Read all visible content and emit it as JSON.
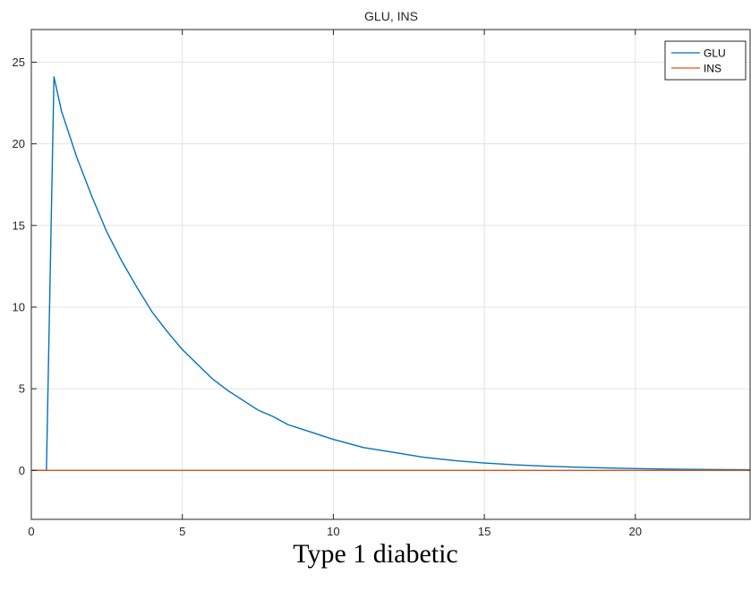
{
  "caption": "Type 1 diabetic",
  "chart_data": {
    "type": "line",
    "title": "GLU, INS",
    "xlabel": "",
    "ylabel": "",
    "xlim": [
      0,
      23.8
    ],
    "ylim": [
      -3,
      27
    ],
    "xticks": [
      0,
      5,
      10,
      15,
      20
    ],
    "yticks": [
      0,
      5,
      10,
      15,
      20,
      25
    ],
    "grid": true,
    "legend_position": "top-right",
    "series": [
      {
        "name": "GLU",
        "color": "#0072BD",
        "x": [
          0,
          0.5,
          0.75,
          1,
          1.5,
          2,
          2.5,
          3,
          3.5,
          4,
          4.5,
          5,
          5.5,
          6,
          6.5,
          7,
          7.5,
          8,
          8.5,
          9,
          10,
          11,
          12,
          13,
          14,
          15,
          16,
          17,
          18,
          19,
          20,
          21,
          22,
          23,
          23.8
        ],
        "y": [
          0,
          0,
          24.1,
          22.0,
          19.2,
          16.8,
          14.6,
          12.8,
          11.2,
          9.7,
          8.5,
          7.4,
          6.5,
          5.6,
          4.9,
          4.3,
          3.7,
          3.3,
          2.8,
          2.5,
          1.9,
          1.4,
          1.1,
          0.8,
          0.6,
          0.45,
          0.34,
          0.26,
          0.2,
          0.15,
          0.11,
          0.08,
          0.06,
          0.05,
          0.04
        ]
      },
      {
        "name": "INS",
        "color": "#D95319",
        "x": [
          0,
          23.8
        ],
        "y": [
          0,
          0
        ]
      }
    ]
  }
}
